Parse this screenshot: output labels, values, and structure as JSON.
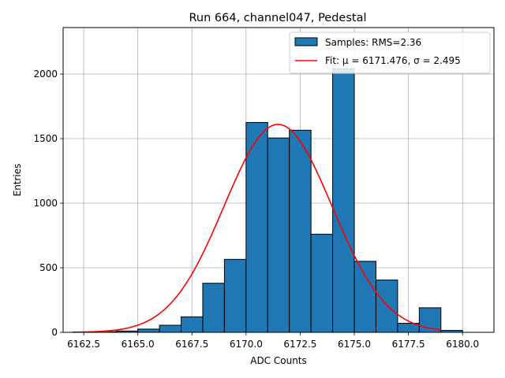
{
  "chart_data": {
    "type": "bar",
    "title": "Run 664, channel047, Pedestal",
    "xlabel": "ADC Counts",
    "ylabel": "Entries",
    "xlim": [
      6161.55,
      6181.45
    ],
    "ylim": [
      0,
      2360
    ],
    "grid": true,
    "legend_position": "upper-right",
    "x_ticks": [
      6162.5,
      6165.0,
      6167.5,
      6170.0,
      6172.5,
      6175.0,
      6177.5,
      6180.0
    ],
    "x_tick_labels": [
      "6162.5",
      "6165.0",
      "6167.5",
      "6170.0",
      "6172.5",
      "6175.0",
      "6177.5",
      "6180.0"
    ],
    "y_ticks": [
      0,
      500,
      1000,
      1500,
      2000
    ],
    "y_tick_labels": [
      "0",
      "500",
      "1000",
      "1500",
      "2000"
    ],
    "histogram": {
      "name": "Samples: RMS=2.36",
      "color": "#1f77b4",
      "edge_color": "#000000",
      "bin_edges": [
        6162,
        6163,
        6164,
        6165,
        6166,
        6167,
        6168,
        6169,
        6170,
        6171,
        6172,
        6173,
        6174,
        6175,
        6176,
        6177,
        6178,
        6179,
        6180,
        6181
      ],
      "counts": [
        3,
        5,
        10,
        25,
        55,
        120,
        380,
        565,
        1625,
        1505,
        1565,
        760,
        2040,
        550,
        405,
        70,
        190,
        15,
        0
      ]
    },
    "fit": {
      "name": "Fit: μ = 6171.476, σ = 2.495",
      "color": "#ff0000",
      "mu": 6171.476,
      "sigma": 2.495,
      "amplitude": 1610,
      "x_range": [
        6162,
        6179
      ]
    }
  }
}
